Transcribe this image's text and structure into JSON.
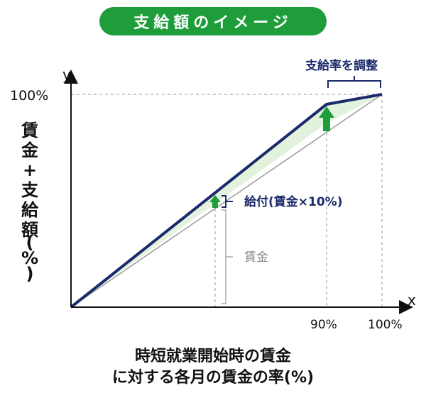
{
  "header": {
    "title": "支給額のイメージ"
  },
  "axes": {
    "y_letter": "y",
    "x_letter": "x",
    "y_tick_100": "100%",
    "x_tick_90": "90%",
    "x_tick_100": "100%",
    "y_axis_label_chars": [
      "賃",
      "金",
      "+",
      "支",
      "給",
      "額",
      "(",
      "%",
      ")"
    ]
  },
  "annotations": {
    "adjust_rate": "支給率を調整",
    "benefit": "給付(賃金×10%)",
    "wage": "賃金"
  },
  "x_axis_title": {
    "line1": "時短就業開始時の賃金",
    "line2": "に対する各月の賃金の率(%)"
  },
  "colors": {
    "navy": "#1b2a6b",
    "green": "#1f9d3a",
    "fill_green": "#e2f2dc",
    "gray": "#999999"
  }
}
